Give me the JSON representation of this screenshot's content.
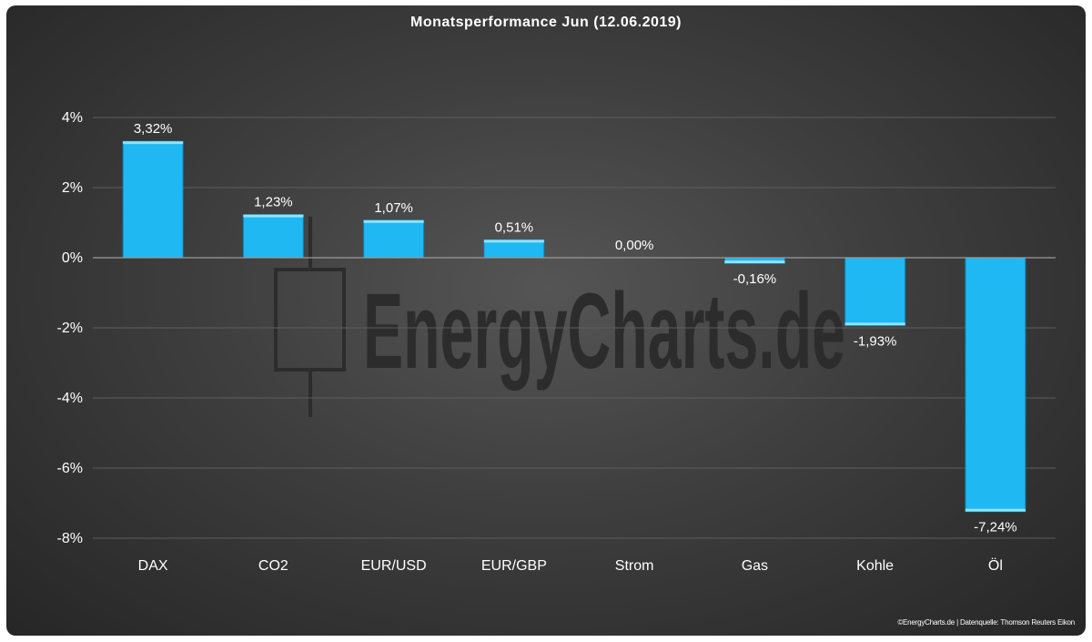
{
  "chart_data": {
    "type": "bar",
    "title": "Monatsperformance Jun (12.06.2019)",
    "categories": [
      "DAX",
      "CO2",
      "EUR/USD",
      "EUR/GBP",
      "Strom",
      "Gas",
      "Kohle",
      "Öl"
    ],
    "values": [
      3.32,
      1.23,
      1.07,
      0.51,
      0.0,
      -0.16,
      -1.93,
      -7.24
    ],
    "value_labels": [
      "3,32%",
      "1,23%",
      "1,07%",
      "0,51%",
      "0,00%",
      "-0,16%",
      "-1,93%",
      "-7,24%"
    ],
    "ylim": [
      -8,
      4
    ],
    "yticks": [
      4,
      2,
      0,
      -2,
      -4,
      -6,
      -8
    ],
    "ytick_labels": [
      "4%",
      "2%",
      "0%",
      "-2%",
      "-4%",
      "-6%",
      "-8%"
    ],
    "xlabel": "",
    "ylabel": "",
    "grid": true,
    "bar_color": "#1fb8f2"
  },
  "watermark": "EnergyCharts.de",
  "source_note": "©EnergyCharts.de | Datenquelle: Thomson Reuters Eikon"
}
